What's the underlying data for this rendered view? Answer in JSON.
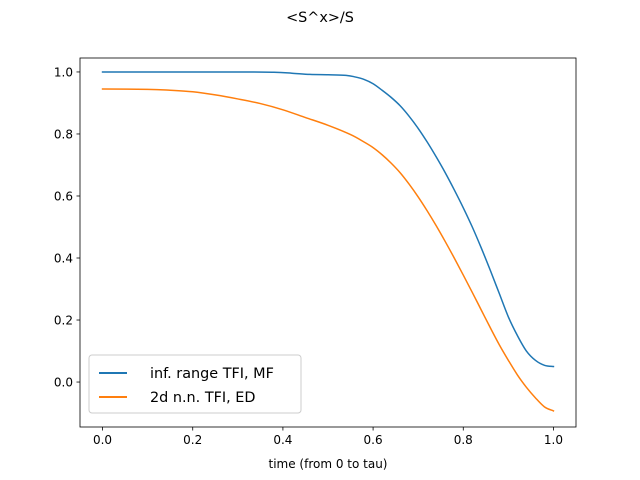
{
  "chart_data": {
    "type": "line",
    "title": "<S^x>/S",
    "xlabel": "time (from 0 to tau)",
    "ylabel": "",
    "xlim": [
      -0.05,
      1.05
    ],
    "ylim": [
      -0.145,
      1.045
    ],
    "xticks": [
      0.0,
      0.2,
      0.4,
      0.6,
      0.8,
      1.0
    ],
    "xtick_labels": [
      "0.0",
      "0.2",
      "0.4",
      "0.6",
      "0.8",
      "1.0"
    ],
    "yticks": [
      0.0,
      0.2,
      0.4,
      0.6,
      0.8,
      1.0
    ],
    "ytick_labels": [
      "0.0",
      "0.2",
      "0.4",
      "0.6",
      "0.8",
      "1.0"
    ],
    "grid": false,
    "legend_position": "lower-left",
    "series": [
      {
        "name": "inf. range TFI, MF",
        "color": "#1f77b4",
        "x": [
          0.0,
          0.1,
          0.2,
          0.3,
          0.38,
          0.42,
          0.46,
          0.5,
          0.54,
          0.56,
          0.58,
          0.6,
          0.62,
          0.64,
          0.66,
          0.68,
          0.7,
          0.72,
          0.74,
          0.76,
          0.78,
          0.8,
          0.82,
          0.84,
          0.86,
          0.88,
          0.9,
          0.92,
          0.94,
          0.96,
          0.98,
          1.0
        ],
        "y": [
          1.0,
          1.0,
          1.0,
          1.0,
          0.999,
          0.996,
          0.992,
          0.991,
          0.989,
          0.984,
          0.976,
          0.962,
          0.941,
          0.918,
          0.891,
          0.857,
          0.818,
          0.774,
          0.726,
          0.675,
          0.62,
          0.562,
          0.5,
          0.432,
          0.36,
          0.285,
          0.21,
          0.15,
          0.1,
          0.07,
          0.054,
          0.05
        ]
      },
      {
        "name": "2d n.n. TFI, ED",
        "color": "#ff7f0e",
        "x": [
          0.0,
          0.1,
          0.15,
          0.2,
          0.25,
          0.3,
          0.35,
          0.4,
          0.45,
          0.5,
          0.55,
          0.58,
          0.6,
          0.62,
          0.64,
          0.66,
          0.68,
          0.7,
          0.72,
          0.74,
          0.76,
          0.78,
          0.8,
          0.82,
          0.84,
          0.86,
          0.88,
          0.9,
          0.92,
          0.94,
          0.96,
          0.98,
          1.0
        ],
        "y": [
          0.945,
          0.944,
          0.941,
          0.936,
          0.926,
          0.913,
          0.898,
          0.878,
          0.853,
          0.828,
          0.798,
          0.774,
          0.756,
          0.733,
          0.706,
          0.675,
          0.638,
          0.597,
          0.552,
          0.504,
          0.453,
          0.4,
          0.345,
          0.289,
          0.232,
          0.175,
          0.12,
          0.07,
          0.023,
          -0.017,
          -0.051,
          -0.08,
          -0.093
        ]
      }
    ]
  }
}
